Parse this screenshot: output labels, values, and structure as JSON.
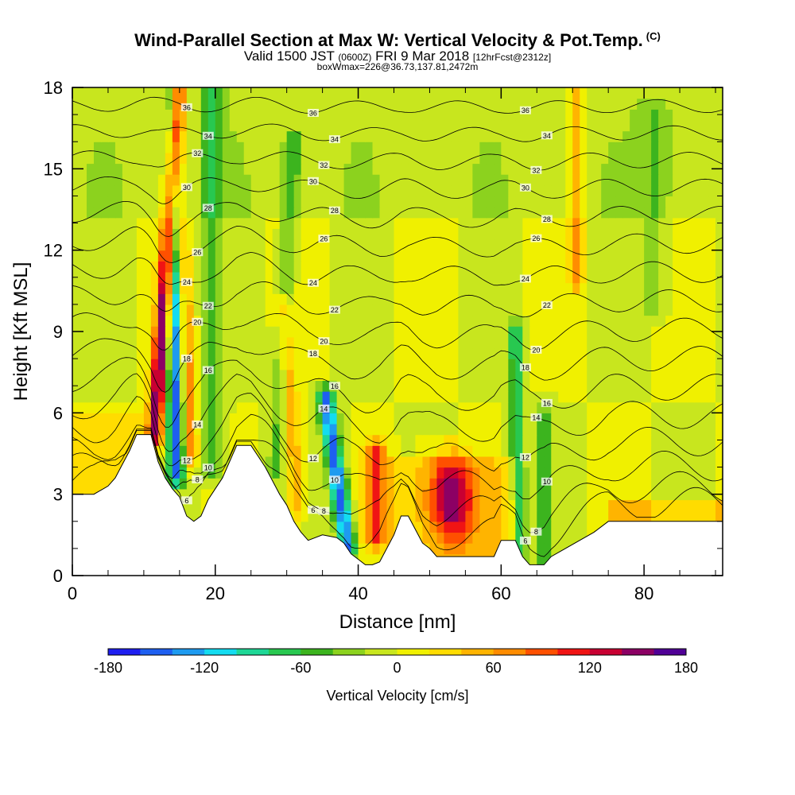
{
  "title": {
    "main": "Wind-Parallel Section at Max W: Vertical Velocity & Pot.Temp.",
    "copyright": "(C)",
    "valid_prefix": "Valid 1500 JST",
    "valid_utc": "(0600Z)",
    "valid_date": "FRI 9 Mar 2018",
    "forecast": "[12hrFcst@2312z]",
    "box": "boxWmax=226@36.73,137.81,2472m"
  },
  "chart_data": {
    "type": "heatmap",
    "xlabel": "Distance [nm]",
    "ylabel": "Height [Kft MSL]",
    "xlim": [
      0,
      91
    ],
    "ylim": [
      0,
      18
    ],
    "xticks": [
      0,
      20,
      40,
      60,
      80
    ],
    "yticks": [
      0,
      3,
      6,
      9,
      12,
      15,
      18
    ],
    "colorbar": {
      "label": "Vertical Velocity [cm/s]",
      "min": -180,
      "max": 180,
      "ticks": [
        -180,
        -120,
        -60,
        0,
        60,
        120,
        180
      ],
      "colors": [
        "#1e1ef0",
        "#1e5ff0",
        "#1e9bf0",
        "#14dcf0",
        "#1ed796",
        "#28c850",
        "#3cb41e",
        "#8cd21e",
        "#c8e61e",
        "#f0f000",
        "#ffdc00",
        "#ffb400",
        "#ff8c00",
        "#ff5000",
        "#f01414",
        "#c80032",
        "#8c0064",
        "#500096"
      ]
    },
    "terrain": [
      [
        0,
        3
      ],
      [
        3,
        3
      ],
      [
        5,
        3.3
      ],
      [
        6,
        3.6
      ],
      [
        7,
        4.1
      ],
      [
        8,
        4.6
      ],
      [
        9,
        5.2
      ],
      [
        11,
        5.2
      ],
      [
        12,
        4.2
      ],
      [
        13,
        3.6
      ],
      [
        14,
        3.2
      ],
      [
        15,
        2.9
      ],
      [
        16,
        2.2
      ],
      [
        17,
        2
      ],
      [
        18,
        2.2
      ],
      [
        19,
        2.8
      ],
      [
        20,
        3.2
      ],
      [
        21,
        3.6
      ],
      [
        22,
        4.2
      ],
      [
        23,
        4.8
      ],
      [
        25,
        4.8
      ],
      [
        26,
        4.4
      ],
      [
        27,
        4
      ],
      [
        28,
        3.5
      ],
      [
        29,
        3
      ],
      [
        30,
        2.6
      ],
      [
        31,
        2
      ],
      [
        32,
        1.6
      ],
      [
        33,
        1.3
      ],
      [
        35,
        1.5
      ],
      [
        37,
        1.4
      ],
      [
        38,
        1.2
      ],
      [
        39,
        0.8
      ],
      [
        40,
        0.6
      ],
      [
        41,
        0.4
      ],
      [
        42,
        0.4
      ],
      [
        43,
        0.5
      ],
      [
        44,
        1
      ],
      [
        45,
        1.5
      ],
      [
        46,
        2.2
      ],
      [
        47,
        2.2
      ],
      [
        48,
        1.7
      ],
      [
        49,
        1.2
      ],
      [
        50,
        1
      ],
      [
        51,
        0.7
      ],
      [
        59,
        0.7
      ],
      [
        60,
        1.3
      ],
      [
        62,
        1.3
      ],
      [
        63,
        0.7
      ],
      [
        64,
        0.4
      ],
      [
        66,
        0.4
      ],
      [
        67,
        0.7
      ],
      [
        69,
        1
      ],
      [
        71,
        1.3
      ],
      [
        73,
        1.6
      ],
      [
        75,
        2
      ],
      [
        91,
        2
      ]
    ],
    "potential_temperature_contours": [
      6,
      8,
      10,
      12,
      14,
      16,
      18,
      20,
      22,
      24,
      26,
      28,
      30,
      32,
      34,
      36
    ],
    "velocity_features": [
      {
        "x": 11.5,
        "y0": 5.2,
        "y1": 18,
        "lean": 3.5,
        "w": 160,
        "width": 1.1
      },
      {
        "x": 14.5,
        "y0": 3.8,
        "y1": 18,
        "lean": 0,
        "w": -150,
        "width": 1.2
      },
      {
        "x": 16.5,
        "y0": 4.5,
        "y1": 18,
        "lean": -2,
        "w": 90,
        "width": 1.0
      },
      {
        "x": 19.5,
        "y0": 4.0,
        "y1": 18,
        "lean": 0,
        "w": -55,
        "width": 1.3
      },
      {
        "x": 28.5,
        "y0": 4.0,
        "y1": 16,
        "lean": 2.5,
        "w": -45,
        "width": 1.2
      },
      {
        "x": 31.5,
        "y0": 2.5,
        "y1": 10,
        "lean": -2,
        "w": 60,
        "width": 1.1
      },
      {
        "x": 38.5,
        "y0": 1.0,
        "y1": 6.5,
        "lean": -3,
        "w": -150,
        "width": 1.2
      },
      {
        "x": 42.5,
        "y0": 1.5,
        "y1": 4.5,
        "lean": 0,
        "w": 110,
        "width": 1.5
      },
      {
        "x": 53,
        "y0": 1.2,
        "y1": 4.5,
        "lean": 0,
        "w": 130,
        "width": 3.0
      },
      {
        "x": 62.5,
        "y0": 0.5,
        "y1": 9,
        "lean": -0.5,
        "w": -80,
        "width": 1.0
      },
      {
        "x": 66,
        "y0": 0.5,
        "y1": 6,
        "lean": 0,
        "w": -60,
        "width": 1.0
      },
      {
        "x": 70.5,
        "y0": 11,
        "y1": 18,
        "lean": 0,
        "w": 70,
        "width": 1.0
      },
      {
        "x": 81.5,
        "y0": 10,
        "y1": 17,
        "lean": 0,
        "w": -30,
        "width": 2.0
      }
    ]
  }
}
